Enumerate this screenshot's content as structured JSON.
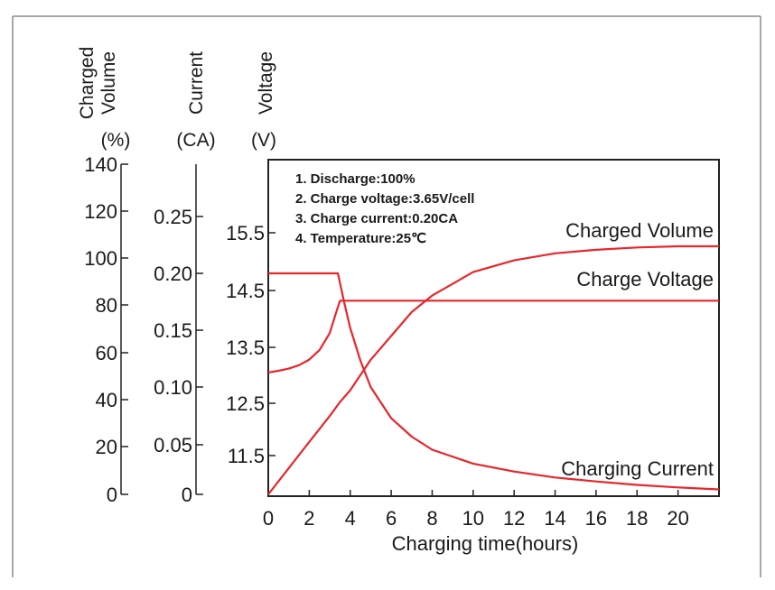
{
  "chart_data": {
    "type": "line",
    "xlabel": "Charging time(hours)",
    "x_ticks": [
      "0",
      "2",
      "4",
      "6",
      "8",
      "10",
      "12",
      "14",
      "16",
      "18",
      "20"
    ],
    "xlim": [
      0,
      22
    ],
    "axes": [
      {
        "name_lines": [
          "Charged",
          "Volume"
        ],
        "unit": "(%)",
        "ticks": [
          "0",
          "20",
          "40",
          "60",
          "80",
          "100",
          "120",
          "140"
        ],
        "ylim": [
          0,
          140
        ]
      },
      {
        "name_lines": [
          "Current"
        ],
        "unit": "(CA)",
        "ticks": [
          "0",
          "0.05",
          "0.10",
          "0.15",
          "0.20",
          "0.25"
        ],
        "ylim": [
          0,
          0.3
        ]
      },
      {
        "name_lines": [
          "Voltage"
        ],
        "unit": "(V)",
        "ticks": [
          "11.5",
          "12.5",
          "13.5",
          "14.5",
          "15.5"
        ],
        "ylim": [
          10.5,
          16.5
        ]
      }
    ],
    "notes": [
      "1. Discharge:100%",
      "2. Charge voltage:3.65V/cell",
      "3. Charge current:0.20CA",
      "4. Temperature:25℃"
    ],
    "series": [
      {
        "name": "Charged Volume",
        "axis": 0,
        "color": "#e8262b",
        "x": [
          0,
          1,
          2,
          3,
          3.5,
          4,
          5,
          6,
          7,
          8,
          10,
          12,
          14,
          16,
          18,
          20,
          22
        ],
        "y": [
          0,
          11,
          22,
          33,
          39,
          44,
          57,
          67,
          77,
          84,
          94,
          99,
          102,
          103.5,
          104.5,
          105,
          105
        ]
      },
      {
        "name": "Charge Voltage",
        "axis": 2,
        "color": "#e8262b",
        "x": [
          0,
          0.5,
          1,
          1.5,
          2,
          2.5,
          3,
          3.3,
          3.5,
          4,
          6,
          8,
          10,
          12,
          14,
          16,
          18,
          20,
          22
        ],
        "y": [
          13.05,
          13.08,
          13.12,
          13.18,
          13.28,
          13.45,
          13.75,
          14.1,
          14.32,
          14.32,
          14.32,
          14.32,
          14.32,
          14.32,
          14.32,
          14.32,
          14.32,
          14.32,
          14.32
        ]
      },
      {
        "name": "Charging Current",
        "axis": 1,
        "color": "#e8262b",
        "x": [
          0,
          1,
          2,
          3,
          3.4,
          3.7,
          4,
          4.5,
          5,
          6,
          7,
          8,
          10,
          12,
          14,
          16,
          18,
          20,
          22
        ],
        "y": [
          0.2,
          0.2,
          0.2,
          0.2,
          0.2,
          0.175,
          0.152,
          0.123,
          0.1,
          0.073,
          0.057,
          0.045,
          0.031,
          0.023,
          0.017,
          0.013,
          0.0095,
          0.007,
          0.005
        ]
      }
    ]
  }
}
